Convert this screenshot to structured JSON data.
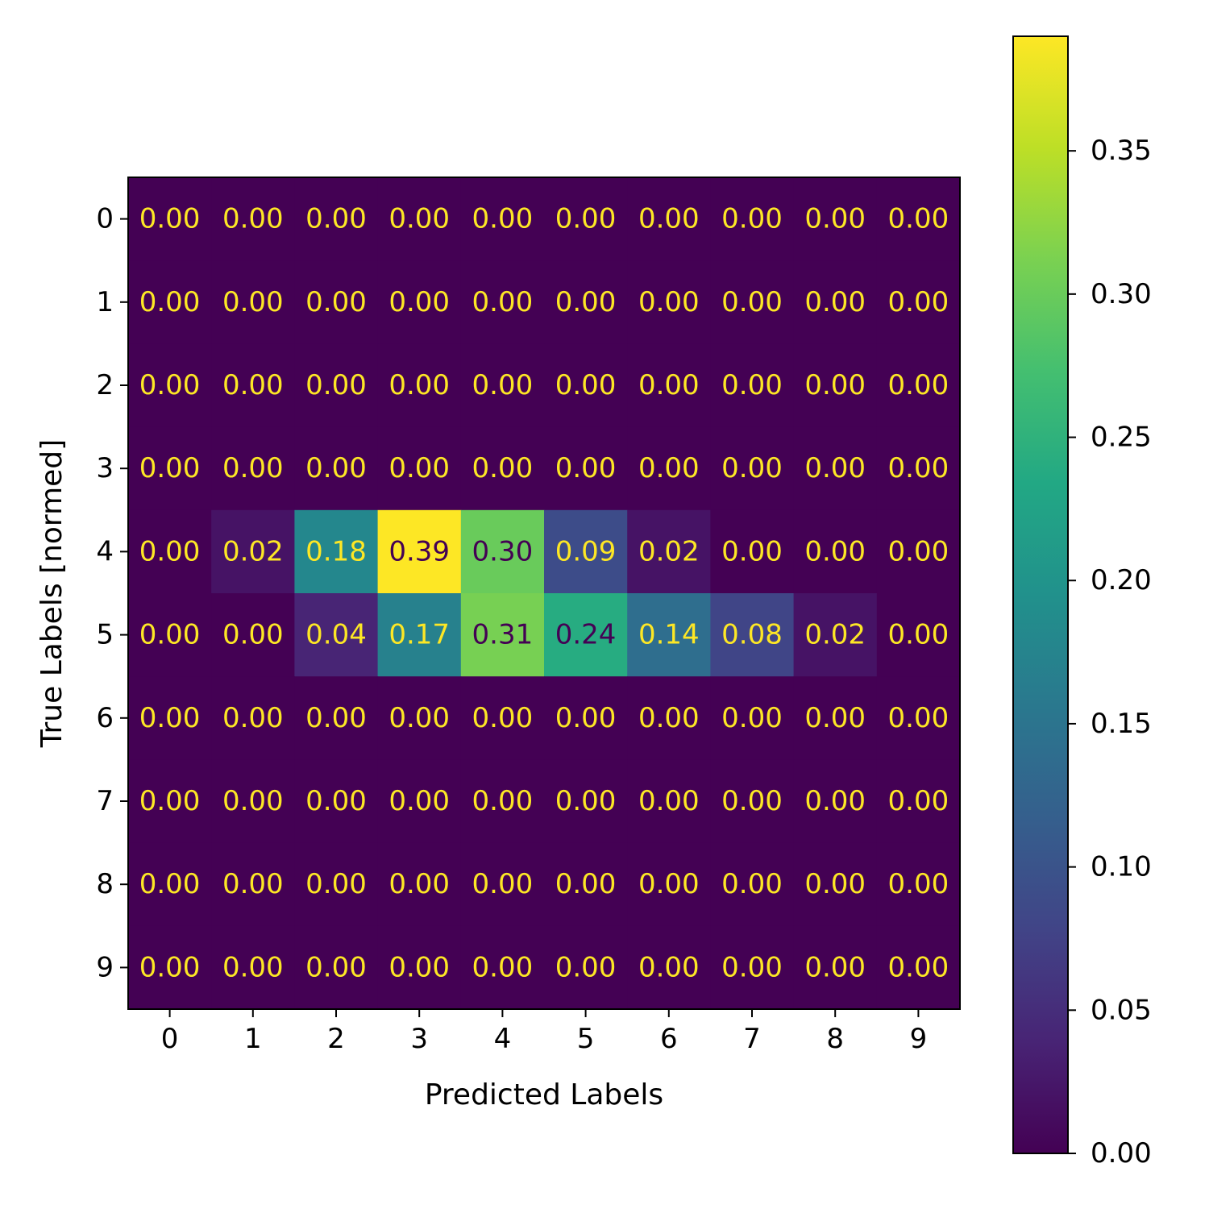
{
  "chart_data": {
    "type": "heatmap",
    "title": "",
    "xlabel": "Predicted Labels",
    "ylabel": "True Labels [normed]",
    "x_categories": [
      "0",
      "1",
      "2",
      "3",
      "4",
      "5",
      "6",
      "7",
      "8",
      "9"
    ],
    "y_categories": [
      "0",
      "1",
      "2",
      "3",
      "4",
      "5",
      "6",
      "7",
      "8",
      "9"
    ],
    "values": [
      [
        0.0,
        0.0,
        0.0,
        0.0,
        0.0,
        0.0,
        0.0,
        0.0,
        0.0,
        0.0
      ],
      [
        0.0,
        0.0,
        0.0,
        0.0,
        0.0,
        0.0,
        0.0,
        0.0,
        0.0,
        0.0
      ],
      [
        0.0,
        0.0,
        0.0,
        0.0,
        0.0,
        0.0,
        0.0,
        0.0,
        0.0,
        0.0
      ],
      [
        0.0,
        0.0,
        0.0,
        0.0,
        0.0,
        0.0,
        0.0,
        0.0,
        0.0,
        0.0
      ],
      [
        0.0,
        0.02,
        0.18,
        0.39,
        0.3,
        0.09,
        0.02,
        0.0,
        0.0,
        0.0
      ],
      [
        0.0,
        0.0,
        0.04,
        0.17,
        0.31,
        0.24,
        0.14,
        0.08,
        0.02,
        0.0
      ],
      [
        0.0,
        0.0,
        0.0,
        0.0,
        0.0,
        0.0,
        0.0,
        0.0,
        0.0,
        0.0
      ],
      [
        0.0,
        0.0,
        0.0,
        0.0,
        0.0,
        0.0,
        0.0,
        0.0,
        0.0,
        0.0
      ],
      [
        0.0,
        0.0,
        0.0,
        0.0,
        0.0,
        0.0,
        0.0,
        0.0,
        0.0,
        0.0
      ],
      [
        0.0,
        0.0,
        0.0,
        0.0,
        0.0,
        0.0,
        0.0,
        0.0,
        0.0,
        0.0
      ]
    ],
    "value_format": "0.00",
    "colormap": "viridis",
    "colorbar": {
      "range": [
        0.0,
        0.39
      ],
      "ticks": [
        0.0,
        0.05,
        0.1,
        0.15,
        0.2,
        0.25,
        0.3,
        0.35
      ],
      "tick_labels": [
        "0.00",
        "0.05",
        "0.10",
        "0.15",
        "0.20",
        "0.25",
        "0.30",
        "0.35"
      ]
    },
    "annotation_colors": {
      "on_dark": "#fde725",
      "on_light": "#440154"
    },
    "grid": false
  }
}
